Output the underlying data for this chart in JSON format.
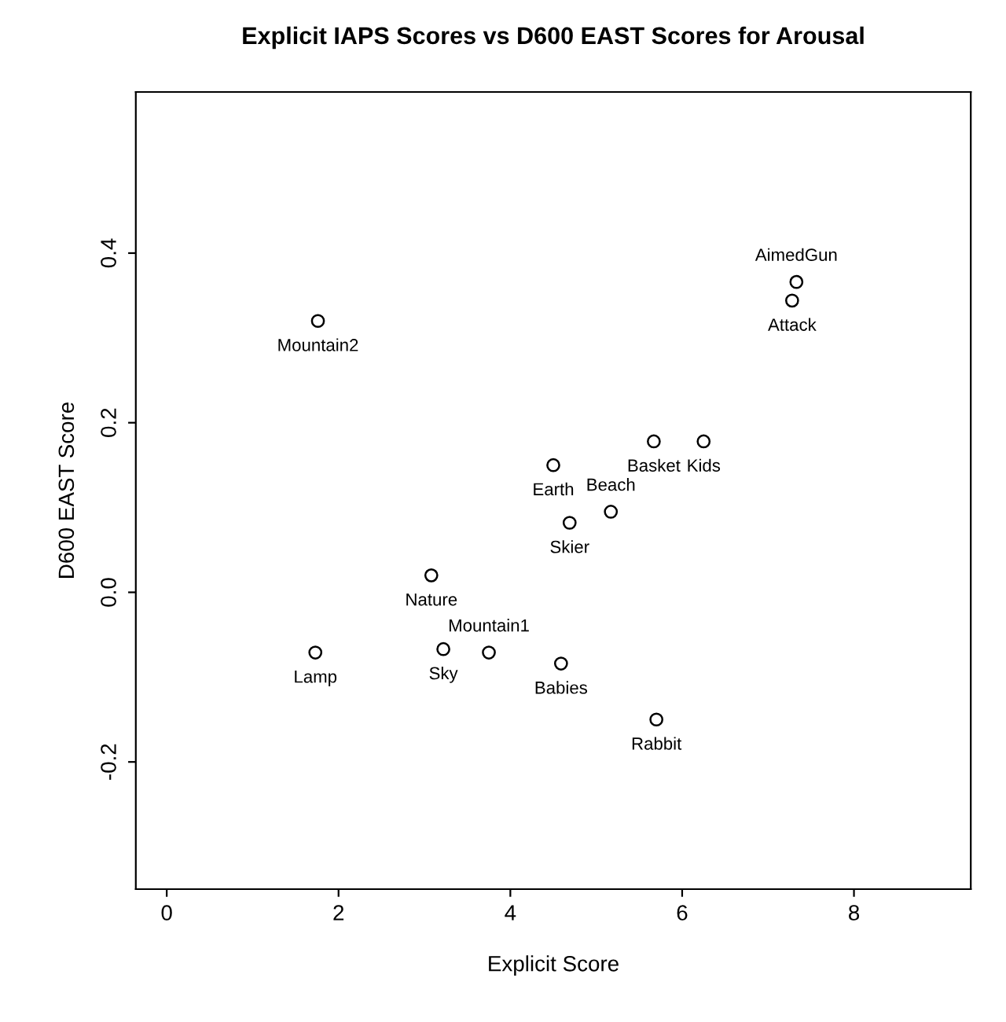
{
  "chart_data": {
    "type": "scatter",
    "title": "Explicit IAPS Scores vs D600 EAST Scores for Arousal",
    "xlabel": "Explicit Score",
    "ylabel": "D600 EAST Score",
    "series": [
      {
        "color": "#000000",
        "x": [
          1.76,
          7.33,
          7.28,
          5.67,
          6.25,
          4.5,
          4.69,
          5.17,
          3.08,
          3.22,
          3.75,
          1.73,
          4.59,
          5.7
        ],
        "values": [
          0.32,
          0.366,
          0.344,
          0.178,
          0.178,
          0.15,
          0.082,
          0.095,
          0.02,
          -0.067,
          -0.071,
          -0.071,
          -0.084,
          -0.15
        ]
      }
    ],
    "annotations": [
      {
        "text": "Mountain2",
        "x": 1.76,
        "y": 0.32
      },
      {
        "text": "AimedGun",
        "x": 7.33,
        "y": 0.366
      },
      {
        "text": "Attack",
        "x": 7.28,
        "y": 0.344
      },
      {
        "text": "Basket",
        "x": 5.67,
        "y": 0.178
      },
      {
        "text": "Kids",
        "x": 6.25,
        "y": 0.178
      },
      {
        "text": "Earth",
        "x": 4.5,
        "y": 0.15
      },
      {
        "text": "Skier",
        "x": 4.69,
        "y": 0.082
      },
      {
        "text": "Beach",
        "x": 5.17,
        "y": 0.095
      },
      {
        "text": "Nature",
        "x": 3.08,
        "y": 0.02
      },
      {
        "text": "Sky",
        "x": 3.22,
        "y": -0.067
      },
      {
        "text": "Mountain1",
        "x": 3.75,
        "y": -0.071
      },
      {
        "text": "Lamp",
        "x": 1.73,
        "y": -0.071
      },
      {
        "text": "Babies",
        "x": 4.59,
        "y": -0.084
      },
      {
        "text": "Rabbit",
        "x": 5.7,
        "y": -0.15
      }
    ],
    "xlim": [
      -0.36,
      9.36
    ],
    "ylim": [
      -0.35,
      0.59
    ],
    "xticks": [
      0,
      2,
      4,
      6,
      8
    ],
    "yticks": [
      -0.2,
      {
        "value": 0,
        "label": "0.0"
      },
      0.2,
      0.4
    ],
    "marker": "circle",
    "grid": false,
    "legend": false
  }
}
